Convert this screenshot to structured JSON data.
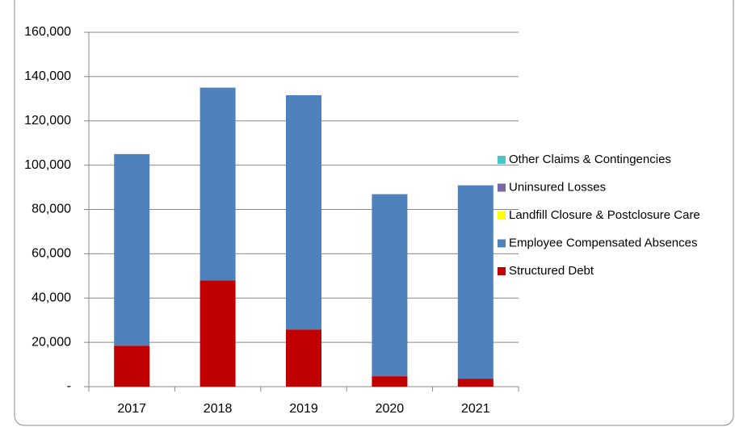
{
  "chart_data": {
    "type": "stacked-bar",
    "categories": [
      "2017",
      "2018",
      "2019",
      "2020",
      "2021"
    ],
    "series": [
      {
        "name": "Structured Debt",
        "color": "#c00000",
        "values": [
          18500,
          48000,
          25800,
          4700,
          3600
        ]
      },
      {
        "name": "Employee Compensated Absences",
        "color": "#4f81bd",
        "values": [
          86500,
          87000,
          105800,
          82200,
          87300
        ]
      },
      {
        "name": "Landfill Closure & Postclosure Care",
        "color": "#ffff00",
        "values": [
          0,
          0,
          0,
          0,
          0
        ]
      },
      {
        "name": "Uninsured Losses",
        "color": "#7a68a6",
        "values": [
          0,
          0,
          0,
          0,
          0
        ]
      },
      {
        "name": "Other Claims & Contingencies",
        "color": "#4bc6c6",
        "values": [
          0,
          0,
          0,
          0,
          0
        ]
      }
    ],
    "ylim": [
      0,
      160000
    ],
    "yticks": [
      {
        "value": 0,
        "label": "-"
      },
      {
        "value": 20000,
        "label": "20,000"
      },
      {
        "value": 40000,
        "label": "40,000"
      },
      {
        "value": 60000,
        "label": "60,000"
      },
      {
        "value": 80000,
        "label": "80,000"
      },
      {
        "value": 100000,
        "label": "100,000"
      },
      {
        "value": 120000,
        "label": "120,000"
      },
      {
        "value": 140000,
        "label": "140,000"
      },
      {
        "value": 160000,
        "label": "160,000"
      }
    ],
    "grid": true,
    "legend": "right"
  }
}
